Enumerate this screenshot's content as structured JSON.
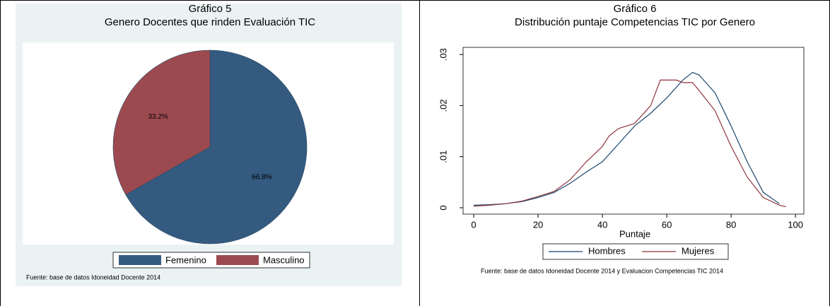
{
  "chart_data": [
    {
      "type": "pie",
      "title": "Gráfico 5",
      "subtitle": "Genero Docentes que rinden Evaluación TIC",
      "categories": [
        "Femenino",
        "Masculino"
      ],
      "values": [
        66.8,
        33.2
      ],
      "value_labels": [
        "66.8%",
        "33.2%"
      ],
      "colors": [
        "#345a80",
        "#9c4a4f"
      ],
      "note": "Fuente: base de datos Idoneidad Docente 2014"
    },
    {
      "type": "line",
      "title": "Gráfico 6",
      "subtitle": "Distribución puntaje Competencias TIC por Genero",
      "xlabel": "Puntaje",
      "xlim": [
        -3.3,
        102.6
      ],
      "xticks": [
        0,
        20,
        40,
        60,
        80,
        100
      ],
      "ylim": [
        -0.00125,
        0.0314
      ],
      "yticks": [
        0,
        {
          "value": 0.01,
          "label": ".01"
        },
        {
          "value": 0.02,
          "label": ".02"
        },
        {
          "value": 0.03,
          "label": ".03"
        }
      ],
      "series": [
        {
          "name": "Hombres",
          "color": "#1a476f",
          "x": [
            0,
            5,
            10,
            15,
            20,
            25,
            30,
            35,
            40,
            45,
            50,
            55,
            60,
            65,
            68,
            70,
            75,
            80,
            85,
            90,
            95
          ],
          "values": [
            0.0005,
            0.0006,
            0.0008,
            0.0012,
            0.002,
            0.003,
            0.0048,
            0.007,
            0.009,
            0.0125,
            0.016,
            0.0185,
            0.0215,
            0.025,
            0.0265,
            0.026,
            0.0225,
            0.016,
            0.009,
            0.003,
            0.0008
          ]
        },
        {
          "name": "Mujeres",
          "color": "#90353b",
          "x": [
            0,
            5,
            10,
            15,
            20,
            25,
            30,
            35,
            40,
            42,
            45,
            50,
            55,
            58,
            60,
            63,
            65,
            68,
            70,
            75,
            80,
            85,
            90,
            95,
            97
          ],
          "values": [
            0.0003,
            0.0005,
            0.0008,
            0.0013,
            0.0022,
            0.0032,
            0.0055,
            0.009,
            0.012,
            0.014,
            0.0155,
            0.0165,
            0.02,
            0.025,
            0.025,
            0.025,
            0.0245,
            0.0245,
            0.023,
            0.019,
            0.012,
            0.006,
            0.002,
            0.0005,
            0.0002
          ]
        }
      ],
      "note": "Fuente: base de datos Idoneidad Docente 2014 y Evaluacion Competencias TIC 2014"
    }
  ]
}
